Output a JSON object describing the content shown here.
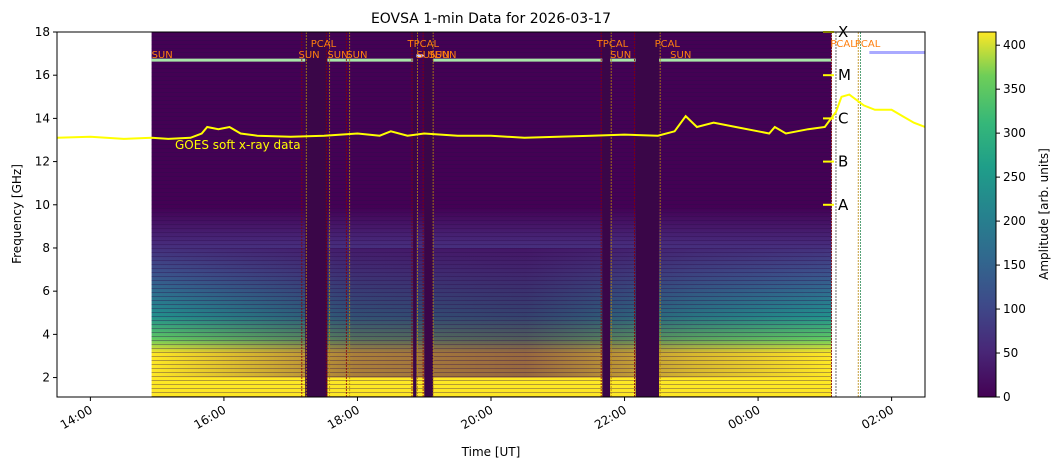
{
  "chart_data": {
    "type": "heatmap",
    "title": "EOVSA 1-min Data for 2026-03-17",
    "xlabel": "Time [UT]",
    "ylabel": "Frequency [GHz]",
    "colorbar_label": "Amplitude [arb. units]",
    "colormap": "viridis",
    "xlim": [
      "13:30",
      "02:30"
    ],
    "ylim": [
      1.1,
      18
    ],
    "clim": [
      0,
      415
    ],
    "xticks": [
      {
        "t": "14:00",
        "label": "14:00"
      },
      {
        "t": "16:00",
        "label": "16:00"
      },
      {
        "t": "18:00",
        "label": "18:00"
      },
      {
        "t": "20:00",
        "label": "20:00"
      },
      {
        "t": "22:00",
        "label": "22:00"
      },
      {
        "t": "00:00",
        "label": "00:00"
      },
      {
        "t": "02:00",
        "label": "02:00"
      }
    ],
    "yticks": [
      2,
      4,
      6,
      8,
      10,
      12,
      14,
      16,
      18
    ],
    "colorbar_ticks": [
      0,
      50,
      100,
      150,
      200,
      250,
      300,
      350,
      400
    ],
    "data_start": "14:55",
    "data_end": "01:06",
    "data_gaps": [
      {
        "start": "17:13",
        "end": "17:33"
      },
      {
        "start": "18:50",
        "end": "18:53"
      },
      {
        "start": "19:00",
        "end": "19:08"
      },
      {
        "start": "21:40",
        "end": "21:47"
      },
      {
        "start": "22:10",
        "end": "22:31"
      }
    ],
    "goes": {
      "label": "GOES soft x-ray data",
      "color": "#ffff00",
      "class_labels": [
        {
          "name": "A",
          "y": 10
        },
        {
          "name": "B",
          "y": 12
        },
        {
          "name": "C",
          "y": 14
        },
        {
          "name": "M",
          "y": 16
        },
        {
          "name": "X",
          "y": 18
        }
      ],
      "points": [
        [
          "13:30",
          13.1
        ],
        [
          "14:00",
          13.15
        ],
        [
          "14:30",
          13.05
        ],
        [
          "14:55",
          13.1
        ],
        [
          "15:10",
          13.05
        ],
        [
          "15:30",
          13.1
        ],
        [
          "15:40",
          13.3
        ],
        [
          "15:45",
          13.6
        ],
        [
          "15:55",
          13.5
        ],
        [
          "16:05",
          13.6
        ],
        [
          "16:15",
          13.3
        ],
        [
          "16:30",
          13.2
        ],
        [
          "17:00",
          13.15
        ],
        [
          "17:30",
          13.2
        ],
        [
          "18:00",
          13.3
        ],
        [
          "18:20",
          13.2
        ],
        [
          "18:30",
          13.4
        ],
        [
          "18:45",
          13.2
        ],
        [
          "19:00",
          13.3
        ],
        [
          "19:30",
          13.2
        ],
        [
          "20:00",
          13.2
        ],
        [
          "20:30",
          13.1
        ],
        [
          "21:00",
          13.15
        ],
        [
          "21:30",
          13.2
        ],
        [
          "22:00",
          13.25
        ],
        [
          "22:30",
          13.2
        ],
        [
          "22:45",
          13.4
        ],
        [
          "22:55",
          14.1
        ],
        [
          "23:05",
          13.6
        ],
        [
          "23:20",
          13.8
        ],
        [
          "23:40",
          13.6
        ],
        [
          "00:00",
          13.4
        ],
        [
          "00:10",
          13.3
        ],
        [
          "00:15",
          13.6
        ],
        [
          "00:25",
          13.3
        ],
        [
          "00:45",
          13.5
        ],
        [
          "01:00",
          13.6
        ],
        [
          "01:10",
          14.3
        ],
        [
          "01:15",
          15.0
        ],
        [
          "01:22",
          15.1
        ],
        [
          "01:35",
          14.6
        ],
        [
          "01:45",
          14.4
        ],
        [
          "02:00",
          14.4
        ],
        [
          "02:10",
          14.1
        ],
        [
          "02:20",
          13.8
        ],
        [
          "02:30",
          13.6
        ]
      ]
    },
    "sun_tracks": [
      {
        "start": "14:55",
        "end": "17:13",
        "y": 16.7,
        "color": "#a8e6a8"
      },
      {
        "start": "17:33",
        "end": "18:50",
        "y": 16.7,
        "color": "#a8e6a8"
      },
      {
        "start": "18:53",
        "end": "19:00",
        "y": 16.9,
        "color": "#c8c8ff"
      },
      {
        "start": "19:08",
        "end": "21:40",
        "y": 16.7,
        "color": "#a8e6a8"
      },
      {
        "start": "21:47",
        "end": "22:10",
        "y": 16.7,
        "color": "#a8e6a8"
      },
      {
        "start": "22:31",
        "end": "01:06",
        "y": 16.7,
        "color": "#a8e6a8"
      },
      {
        "start": "01:40",
        "end": "02:30",
        "y": 17.05,
        "color": "#aaaaff"
      }
    ],
    "annotations": [
      {
        "text": "SUN",
        "t": "14:55",
        "y": 16.8
      },
      {
        "text": "SUN",
        "t": "17:07",
        "y": 16.8
      },
      {
        "text": "PCAL",
        "t": "17:18",
        "y": 17.3
      },
      {
        "text": "SUN",
        "t": "17:33",
        "y": 16.8
      },
      {
        "text": "SUN",
        "t": "17:50",
        "y": 16.8
      },
      {
        "text": "TPCAL",
        "t": "18:45",
        "y": 17.3
      },
      {
        "text": "SUN",
        "t": "18:53",
        "y": 16.8
      },
      {
        "text": "SUN",
        "t": "19:04",
        "y": 16.8
      },
      {
        "text": "SUN",
        "t": "19:10",
        "y": 16.8
      },
      {
        "text": "TPCAL",
        "t": "21:35",
        "y": 17.3
      },
      {
        "text": "SUN",
        "t": "21:47",
        "y": 16.8
      },
      {
        "text": "PCAL",
        "t": "22:27",
        "y": 17.3
      },
      {
        "text": "SUN",
        "t": "22:41",
        "y": 16.8
      },
      {
        "text": "PCAL",
        "t": "01:05",
        "y": 17.3
      },
      {
        "text": "PCAL",
        "t": "01:27",
        "y": 17.3
      }
    ],
    "marker_lines": [
      {
        "t": "17:10",
        "color": "#8b0000"
      },
      {
        "t": "17:14",
        "color": "#b8860b"
      },
      {
        "t": "17:32",
        "color": "#8b0000"
      },
      {
        "t": "17:35",
        "color": "#b8860b"
      },
      {
        "t": "17:50",
        "color": "#8b0000"
      },
      {
        "t": "17:53",
        "color": "#b8860b"
      },
      {
        "t": "18:49",
        "color": "#8b0000"
      },
      {
        "t": "18:54",
        "color": "#b8860b"
      },
      {
        "t": "18:59",
        "color": "#8b0000"
      },
      {
        "t": "19:08",
        "color": "#b8860b"
      },
      {
        "t": "21:39",
        "color": "#8b0000"
      },
      {
        "t": "21:48",
        "color": "#b8860b"
      },
      {
        "t": "22:09",
        "color": "#8b0000"
      },
      {
        "t": "22:32",
        "color": "#b8860b"
      },
      {
        "t": "01:06",
        "color": "#8b0000"
      },
      {
        "t": "01:10",
        "color": "#444444"
      },
      {
        "t": "01:30",
        "color": "#b8860b"
      },
      {
        "t": "01:32",
        "color": "#2e8b57"
      }
    ]
  }
}
